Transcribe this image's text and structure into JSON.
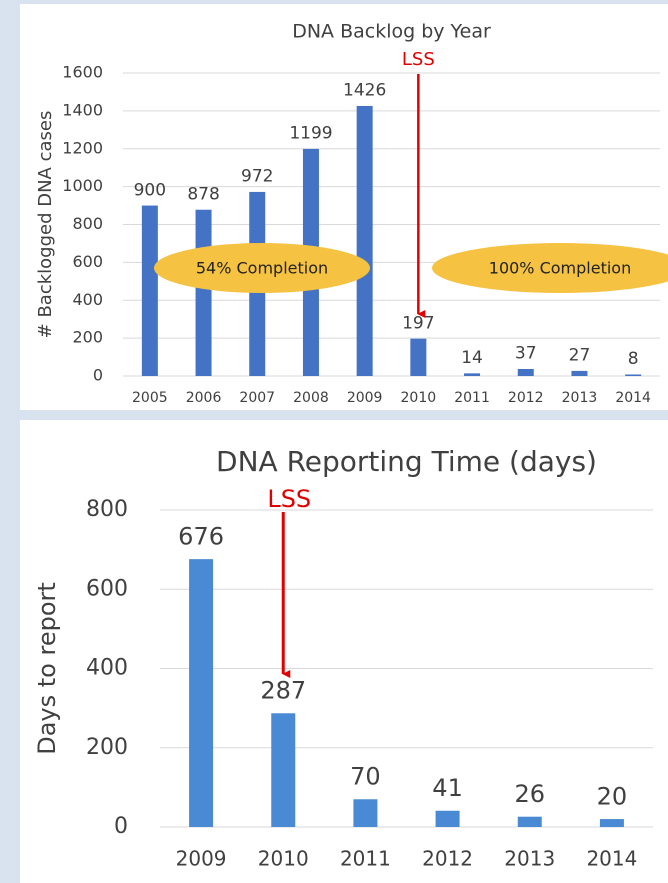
{
  "chart_data": [
    {
      "type": "bar",
      "title": "DNA Backlog by Year",
      "y_label": "# Backlogged DNA cases",
      "categories": [
        "2005",
        "2006",
        "2007",
        "2008",
        "2009",
        "2010",
        "2011",
        "2012",
        "2013",
        "2014"
      ],
      "values": [
        900,
        878,
        972,
        1199,
        1426,
        197,
        14,
        37,
        27,
        8
      ],
      "color": "#4472c4",
      "ylim": [
        0,
        1600
      ],
      "yticks": [
        0,
        200,
        400,
        600,
        800,
        1000,
        1200,
        1400,
        1600
      ],
      "grid": true,
      "annotations": [
        "LSS",
        "54% Completion",
        "100% Completion"
      ]
    },
    {
      "type": "bar",
      "title": "DNA Reporting Time (days)",
      "y_label": "Days to report",
      "categories": [
        "2009",
        "2010",
        "2011",
        "2012",
        "2013",
        "2014"
      ],
      "values": [
        676,
        287,
        70,
        41,
        26,
        20
      ],
      "color": "#4a8ad4",
      "ylim": [
        0,
        800
      ],
      "yticks": [
        0,
        200,
        400,
        600,
        800
      ],
      "grid": true,
      "annotations": [
        "LSS"
      ]
    }
  ]
}
